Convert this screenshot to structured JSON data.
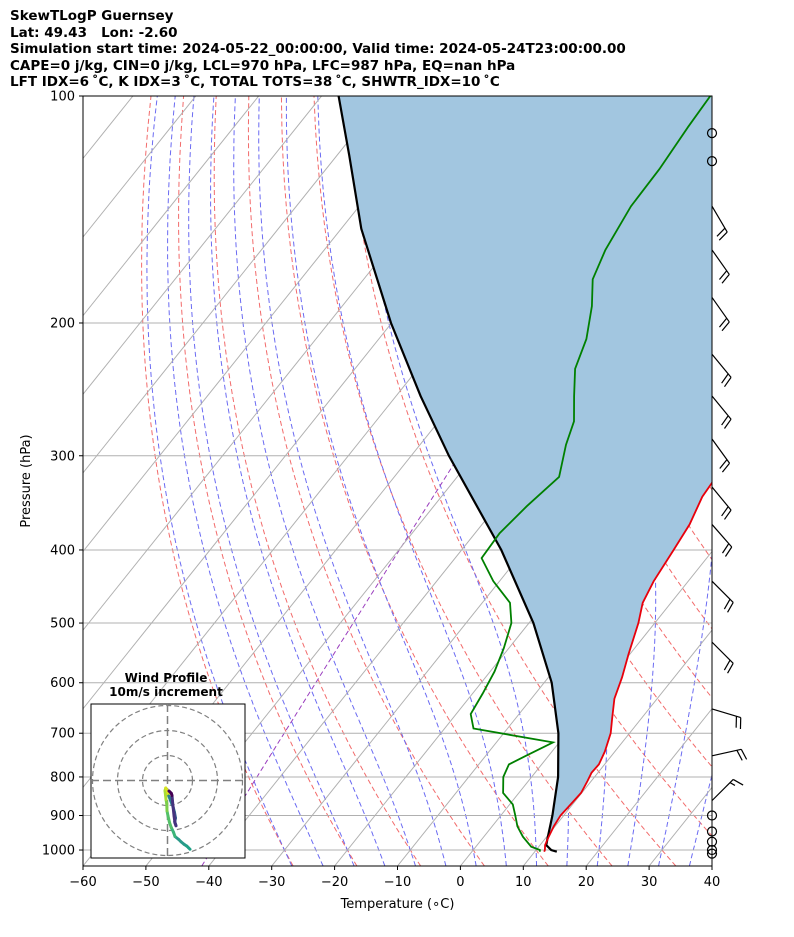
{
  "header": {
    "line1": "SkewTLogP Guernsey",
    "line2": "Lat: 49.43   Lon: -2.60",
    "line3": "Simulation start time: 2024-05-22_00:00:00, Valid time: 2024-05-24T23:00:00.00",
    "line4": "CAPE=0 j/kg, CIN=0 j/kg, LCL=970 hPa, LFC=987 hPa, EQ=nan hPa",
    "line5": "LFT IDX=6 ˚C, K IDX=3 ˚C, TOTAL TOTS=38 ˚C, SHWTR_IDX=10 ˚C"
  },
  "chart_data": [
    {
      "type": "line",
      "subtype": "skew-t log-p",
      "xlabel": "Temperature (∘C)",
      "ylabel": "Pressure (hPa)",
      "xlim": [
        -60,
        40
      ],
      "ylim": [
        1050,
        100
      ],
      "y_scale": "log",
      "x_ticks": [
        -60,
        -50,
        -40,
        -30,
        -20,
        -10,
        0,
        10,
        20,
        30,
        40
      ],
      "x_tick_labels": [
        "−60",
        "−50",
        "−40",
        "−30",
        "−20",
        "−10",
        "0",
        "10",
        "20",
        "30",
        "40"
      ],
      "y_ticks": [
        1000,
        900,
        800,
        700,
        600,
        500,
        400,
        300,
        200,
        100
      ],
      "y_tick_labels": [
        "1000",
        "900",
        "800",
        "700",
        "600",
        "500",
        "400",
        "300",
        "200",
        "100"
      ],
      "grid": true,
      "series": [
        {
          "role": "temperature",
          "color": "#e8000b",
          "p": [
            1005,
            1000,
            985,
            960,
            930,
            900,
            870,
            840,
            810,
            790,
            770,
            740,
            700,
            670,
            630,
            590,
            550,
            500,
            470,
            440,
            400,
            370,
            340,
            310,
            280,
            255,
            235,
            210,
            195,
            180,
            160,
            145,
            130,
            120,
            110,
            100
          ],
          "t": [
            11.5,
            11.4,
            10.8,
            10.3,
            9.8,
            9.5,
            9.7,
            9.9,
            9.4,
            9.0,
            9.1,
            8.4,
            7.0,
            5.4,
            3.2,
            1.7,
            -0.2,
            -2.6,
            -4.5,
            -5.5,
            -6.3,
            -7.0,
            -8.5,
            -9.0,
            -9.7,
            -10.4,
            -10.4,
            -7.5,
            -2.7,
            0.1,
            1.4,
            2.6,
            4.6,
            5.9,
            7.5,
            8.7
          ]
        },
        {
          "role": "dewpoint",
          "color": "#008000",
          "p": [
            1005,
            1000,
            990,
            960,
            930,
            900,
            870,
            840,
            800,
            770,
            750,
            720,
            690,
            660,
            620,
            580,
            540,
            500,
            470,
            440,
            410,
            380,
            350,
            320,
            290,
            270,
            250,
            230,
            210,
            190,
            175,
            160,
            140,
            125,
            110,
            100
          ],
          "t": [
            10.8,
            10.6,
            8.8,
            6.2,
            4.0,
            2.3,
            0.5,
            -2.5,
            -4.5,
            -5.2,
            -3.6,
            -1.0,
            -15.4,
            -17.7,
            -18.4,
            -19.3,
            -20.8,
            -22.8,
            -25.6,
            -31.0,
            -35.8,
            -36.1,
            -35.2,
            -33.8,
            -36.8,
            -38.5,
            -41.7,
            -45.0,
            -47.0,
            -50.3,
            -53.6,
            -55.3,
            -56.8,
            -57.0,
            -57.8,
            -58.2
          ]
        },
        {
          "role": "parcel",
          "color": "#000000",
          "p": [
            1005,
            1000,
            985,
            970,
            900,
            800,
            700,
            600,
            500,
            400,
            300,
            250,
            200,
            150,
            120,
            100
          ],
          "t": [
            13.5,
            12.4,
            11.0,
            10.5,
            8.2,
            4.2,
            -1.3,
            -8.8,
            -19.3,
            -33.7,
            -54.0,
            -66.1,
            -80.1,
            -96.8,
            -108.0,
            -117.3
          ]
        }
      ],
      "wind_barbs": [
        {
          "p": 1011,
          "calm": true
        },
        {
          "p": 1000,
          "calm": true
        },
        {
          "p": 975,
          "calm": true
        },
        {
          "p": 945,
          "calm": true
        },
        {
          "p": 900,
          "calm": true
        },
        {
          "p": 860,
          "u": -9,
          "v": -9
        },
        {
          "p": 750,
          "u": -18,
          "v": -4
        },
        {
          "p": 650,
          "u": -20,
          "v": 6
        },
        {
          "p": 530,
          "u": -14,
          "v": 14
        },
        {
          "p": 440,
          "u": -14,
          "v": 14
        },
        {
          "p": 370,
          "u": -14,
          "v": 16
        },
        {
          "p": 330,
          "u": -14,
          "v": 17
        },
        {
          "p": 285,
          "u": -13,
          "v": 18
        },
        {
          "p": 250,
          "u": -14,
          "v": 17
        },
        {
          "p": 220,
          "u": -14,
          "v": 17
        },
        {
          "p": 185,
          "u": -12,
          "v": 17
        },
        {
          "p": 160,
          "u": -12,
          "v": 17
        },
        {
          "p": 140,
          "u": -10,
          "v": 17
        },
        {
          "p": 122,
          "calm": true
        },
        {
          "p": 112,
          "calm": true
        }
      ]
    },
    {
      "type": "line",
      "subtype": "hodograph",
      "title": "Wind Profile",
      "subtitle": "10m/s increment",
      "ring_increment": 10,
      "rings": [
        10,
        20,
        30
      ],
      "u": [
        9.0,
        8.5,
        7.8,
        6.6,
        5.4,
        4.5,
        3.0,
        2.4,
        1.5,
        0.8,
        0.2,
        -0.2,
        -0.3,
        -0.6,
        -0.8,
        -1.0,
        -0.7,
        -0.2,
        0.5,
        1.3,
        2.2,
        2.8,
        3.2,
        2.9,
        3.4,
        3.0,
        2.6,
        2.0,
        1.8,
        1.5,
        1.0,
        0.6
      ],
      "v": [
        -27.5,
        -27.0,
        -26.3,
        -25.5,
        -24.5,
        -23.6,
        -22.4,
        -20.7,
        -18.8,
        -16.8,
        -14.2,
        -12.1,
        -9.2,
        -7.6,
        -5.8,
        -4.1,
        -3.0,
        -3.8,
        -6.2,
        -8.2,
        -10.4,
        -12.8,
        -15.0,
        -16.5,
        -18.1,
        -17.0,
        -14.0,
        -8.3,
        -6.0,
        -5.1,
        -4.6,
        -4.2
      ]
    }
  ]
}
